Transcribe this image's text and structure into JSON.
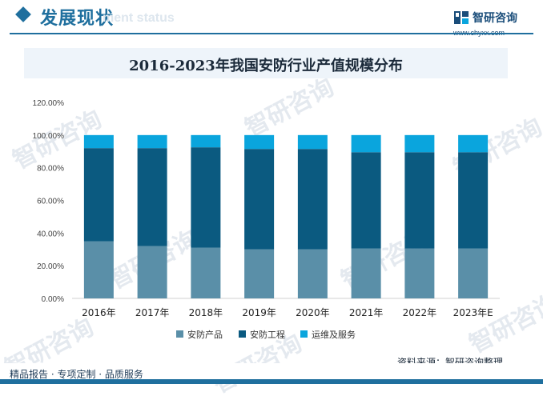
{
  "header": {
    "section_title": "发展现状",
    "section_subtitle": "ment status",
    "brand_name": "智研咨询",
    "brand_url": "www.chyxx.com"
  },
  "watermark_text": "智研咨询",
  "source_text": "资料来源：智研咨询整理",
  "footer_text": "精品报告 · 专项定制 · 品质服务",
  "colors": {
    "accent": "#1f6f9e",
    "series": [
      "#5a8fa8",
      "#0b5a80",
      "#0aa5dd"
    ]
  },
  "chart_data": {
    "type": "bar",
    "stacked": true,
    "title": "2016-2023年我国安防行业产值规模分布",
    "categories": [
      "2016年",
      "2017年",
      "2018年",
      "2019年",
      "2020年",
      "2021年",
      "2022年",
      "2023年E"
    ],
    "series": [
      {
        "name": "安防产品",
        "values": [
          35,
          32,
          31,
          30,
          30,
          30.5,
          30.5,
          30.5
        ]
      },
      {
        "name": "安防工程",
        "values": [
          57,
          60,
          61.5,
          61.5,
          61.5,
          59,
          59,
          59
        ]
      },
      {
        "name": "运维及服务",
        "values": [
          8,
          8,
          7.5,
          8.5,
          8.5,
          10.5,
          10.5,
          10.5
        ]
      }
    ],
    "ylim": [
      0,
      120
    ],
    "yticks": [
      "0.00%",
      "20.00%",
      "40.00%",
      "60.00%",
      "80.00%",
      "100.00%",
      "120.00%"
    ],
    "ytick_values": [
      0,
      20,
      40,
      60,
      80,
      100,
      120
    ],
    "grid": false,
    "legend": "bottom"
  }
}
